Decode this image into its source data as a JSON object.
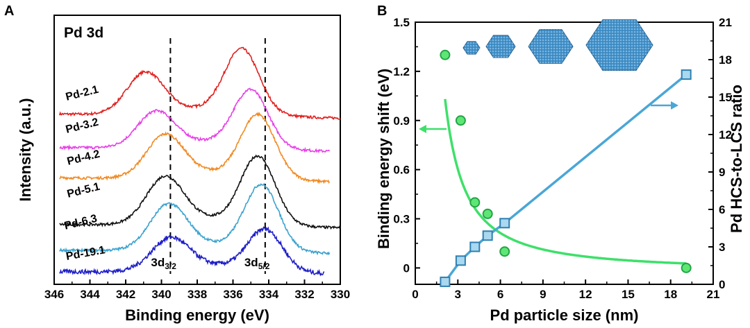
{
  "chart_data": [
    {
      "panel": "A",
      "type": "line",
      "title": "Pd 3d",
      "xlabel": "Binding energy (eV)",
      "ylabel": "Intensity (a.u.)",
      "xlim": [
        346,
        330
      ],
      "x_ticks": [
        "346",
        "344",
        "342",
        "340",
        "338",
        "336",
        "334",
        "332",
        "330"
      ],
      "peak_markers": [
        {
          "label": "3d",
          "sub": "3/2",
          "x": 339.5
        },
        {
          "label": "3d",
          "sub": "5/2",
          "x": 334.2
        }
      ],
      "series": [
        {
          "name": "Pd-2.1",
          "color": "#e0201e",
          "x_start": 345.7,
          "x_end": 330.0,
          "baseline": 0.0,
          "peaks": [
            {
              "x": 340.9,
              "h": 1.0
            },
            {
              "x": 335.5,
              "h": 1.55
            }
          ],
          "offset": 5
        }
      ]
    }
  ]
}
